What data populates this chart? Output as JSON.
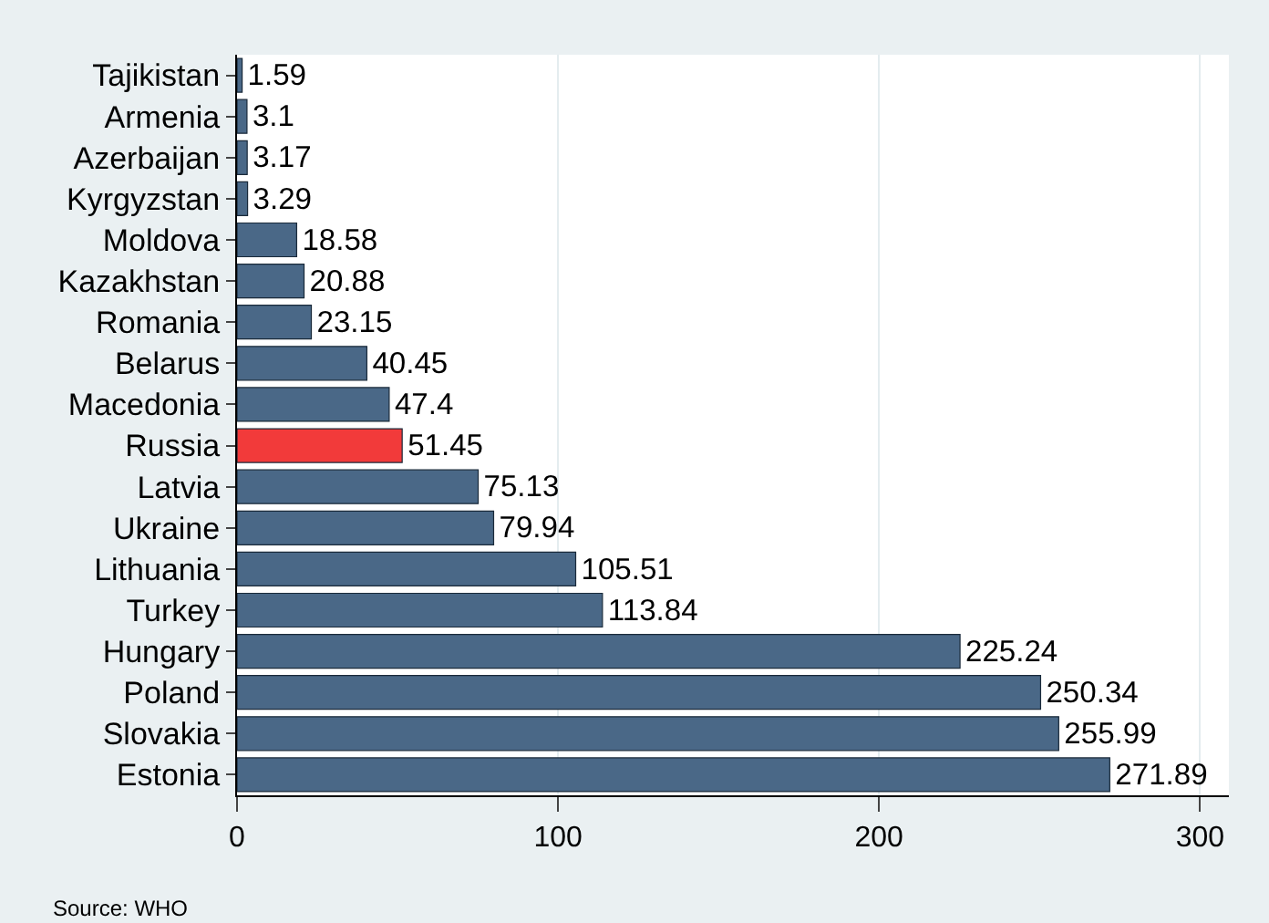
{
  "chart_data": {
    "type": "bar",
    "orientation": "horizontal",
    "categories": [
      "Tajikistan",
      "Armenia",
      "Azerbaijan",
      "Kyrgyzstan",
      "Moldova",
      "Kazakhstan",
      "Romania",
      "Belarus",
      "Macedonia",
      "Russia",
      "Latvia",
      "Ukraine",
      "Lithuania",
      "Turkey",
      "Hungary",
      "Poland",
      "Slovakia",
      "Estonia"
    ],
    "values": [
      1.59,
      3.1,
      3.17,
      3.29,
      18.58,
      20.88,
      23.15,
      40.45,
      47.4,
      51.45,
      75.13,
      79.94,
      105.51,
      113.84,
      225.24,
      250.34,
      255.99,
      271.89
    ],
    "colors": [
      "#4a6887",
      "#4a6887",
      "#4a6887",
      "#4a6887",
      "#4a6887",
      "#4a6887",
      "#4a6887",
      "#4a6887",
      "#4a6887",
      "#f23a3a",
      "#4a6887",
      "#4a6887",
      "#4a6887",
      "#4a6887",
      "#4a6887",
      "#4a6887",
      "#4a6887",
      "#4a6887"
    ],
    "xlim": [
      0,
      309
    ],
    "xticks": [
      0,
      100,
      200,
      300
    ],
    "grid": "x",
    "data_labels": true,
    "legend": false,
    "annotations": [
      "Source: WHO"
    ]
  }
}
